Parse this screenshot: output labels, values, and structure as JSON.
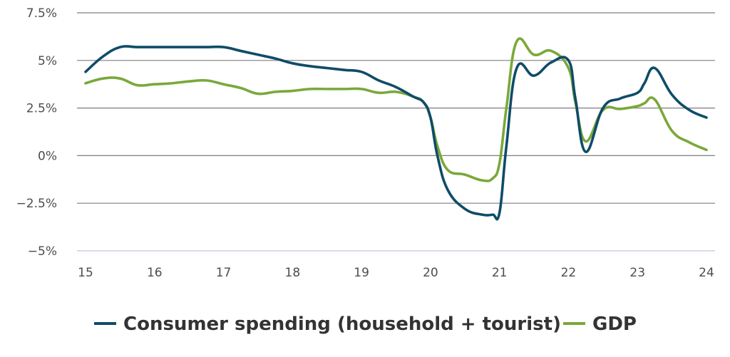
{
  "chart_data": {
    "type": "line",
    "title": "",
    "xlabel": "",
    "ylabel": "",
    "x_ticks": [
      "15",
      "16",
      "17",
      "18",
      "19",
      "20",
      "21",
      "22",
      "23",
      "24"
    ],
    "y_ticks": [
      {
        "value": 7.5,
        "label": "7.5%"
      },
      {
        "value": 5,
        "label": "5%"
      },
      {
        "value": 2.5,
        "label": "2.5%"
      },
      {
        "value": 0,
        "label": "0%"
      },
      {
        "value": -2.5,
        "label": "−2.5%"
      },
      {
        "value": -5,
        "label": "−5%"
      }
    ],
    "xlim": [
      15,
      24
    ],
    "ylim": [
      -5,
      7.5
    ],
    "grid": "horizontal",
    "legend_position": "bottom",
    "colors": {
      "consumer_spending": "#0f4c68",
      "gdp": "#7aa83a",
      "grid": "#7f7f7f",
      "axis": "#c8d0e0"
    },
    "series": [
      {
        "name": "Consumer spending (household + tourist)",
        "color": "#0f4c68",
        "x": [
          15,
          15.25,
          15.5,
          15.75,
          16,
          16.25,
          16.5,
          16.75,
          17,
          17.25,
          17.5,
          17.75,
          18,
          18.25,
          18.5,
          18.75,
          19,
          19.25,
          19.5,
          19.75,
          19.9,
          20,
          20.1,
          20.25,
          20.5,
          20.75,
          20.9,
          21,
          21.1,
          21.25,
          21.5,
          21.75,
          22,
          22.1,
          22.25,
          22.5,
          22.75,
          23,
          23.1,
          23.25,
          23.5,
          23.75,
          24
        ],
        "values": [
          4.4,
          5.2,
          5.7,
          5.7,
          5.7,
          5.7,
          5.7,
          5.7,
          5.7,
          5.5,
          5.3,
          5.1,
          4.85,
          4.7,
          4.6,
          4.5,
          4.4,
          3.95,
          3.6,
          3.1,
          2.8,
          2.0,
          0.0,
          -1.8,
          -2.8,
          -3.1,
          -3.1,
          -3.0,
          0.5,
          4.6,
          4.2,
          4.9,
          5.0,
          3.0,
          0.2,
          2.5,
          3.0,
          3.3,
          3.8,
          4.6,
          3.2,
          2.4,
          2.0
        ]
      },
      {
        "name": "GDP",
        "color": "#7aa83a",
        "x": [
          15,
          15.25,
          15.5,
          15.75,
          16,
          16.25,
          16.5,
          16.75,
          17,
          17.25,
          17.5,
          17.75,
          18,
          18.25,
          18.5,
          18.75,
          19,
          19.25,
          19.5,
          19.75,
          19.9,
          20,
          20.1,
          20.25,
          20.5,
          20.75,
          20.9,
          21,
          21.1,
          21.25,
          21.5,
          21.75,
          22,
          22.1,
          22.25,
          22.5,
          22.75,
          23,
          23.1,
          23.25,
          23.5,
          23.75,
          24
        ],
        "values": [
          3.8,
          4.05,
          4.05,
          3.7,
          3.75,
          3.8,
          3.9,
          3.95,
          3.75,
          3.55,
          3.25,
          3.35,
          3.4,
          3.5,
          3.5,
          3.5,
          3.5,
          3.3,
          3.35,
          3.1,
          2.8,
          2.0,
          0.5,
          -0.75,
          -1.0,
          -1.3,
          -1.2,
          -0.4,
          2.5,
          6.0,
          5.3,
          5.5,
          4.6,
          2.8,
          0.75,
          2.4,
          2.45,
          2.6,
          2.75,
          2.95,
          1.3,
          0.7,
          0.3
        ]
      }
    ]
  }
}
